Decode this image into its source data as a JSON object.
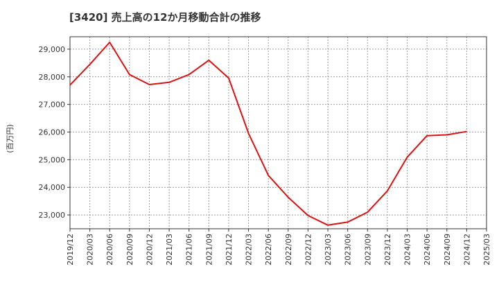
{
  "chart_data": {
    "type": "line",
    "title": "[3420]  売上高の12か月移動合計の推移",
    "ylabel": "(百万円)",
    "xlabel": "",
    "ylim": [
      22500,
      29450
    ],
    "yticks": [
      23000,
      24000,
      25000,
      26000,
      27000,
      28000,
      29000
    ],
    "ytick_labels": [
      "23,000",
      "24,000",
      "25,000",
      "26,000",
      "27,000",
      "28,000",
      "29,000"
    ],
    "categories": [
      "2019/12",
      "2020/03",
      "2020/06",
      "2020/09",
      "2020/12",
      "2021/03",
      "2021/06",
      "2021/09",
      "2021/12",
      "2022/03",
      "2022/06",
      "2022/09",
      "2022/12",
      "2023/03",
      "2023/06",
      "2023/09",
      "2023/12",
      "2024/03",
      "2024/06",
      "2024/09",
      "2024/12",
      "2025/03"
    ],
    "grid": true,
    "line_color": "#dd1111",
    "series": [
      {
        "name": "売上高12か月移動合計",
        "values": [
          27700,
          28450,
          29250,
          28080,
          27720,
          27800,
          28080,
          28600,
          27950,
          25950,
          24430,
          23640,
          22980,
          22630,
          22740,
          23100,
          23870,
          25090,
          25870,
          25900,
          26020,
          null
        ]
      }
    ]
  }
}
